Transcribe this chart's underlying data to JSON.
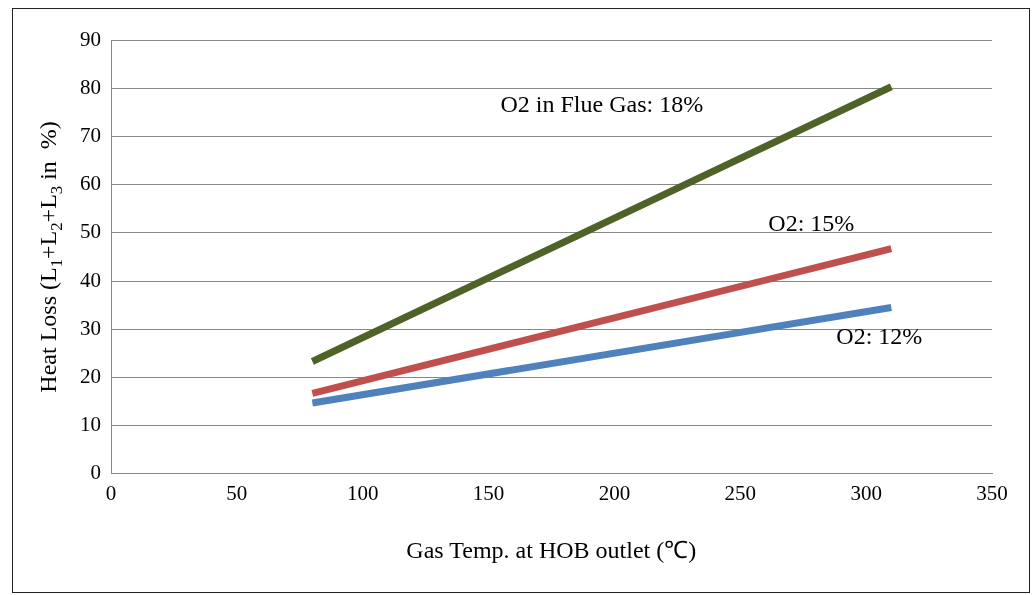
{
  "chart_data": {
    "type": "line",
    "xlabel": "Gas Temp. at HOB outlet (℃)",
    "ylabel": "Heat Loss (L$_{1}$+L$_{2}$+L$_{3}$ in  %)",
    "x": [
      80,
      310
    ],
    "series": [
      {
        "name": "O2 in Flue Gas: 18%",
        "color": "#4f6228",
        "values": [
          23.3,
          80.3
        ]
      },
      {
        "name": "O2: 15%",
        "color": "#c0504d",
        "values": [
          16.7,
          46.7
        ]
      },
      {
        "name": "O2: 12%",
        "color": "#4f81bd",
        "values": [
          14.7,
          34.5
        ]
      }
    ],
    "xlim": [
      0,
      350
    ],
    "xticks": [
      0,
      50,
      100,
      150,
      200,
      250,
      300,
      350
    ],
    "ylim": [
      0,
      90
    ],
    "yticks": [
      0,
      10,
      20,
      30,
      40,
      50,
      60,
      70,
      80,
      90
    ],
    "grid": "y",
    "legend": false,
    "marker": "none",
    "line_style": "solid"
  }
}
